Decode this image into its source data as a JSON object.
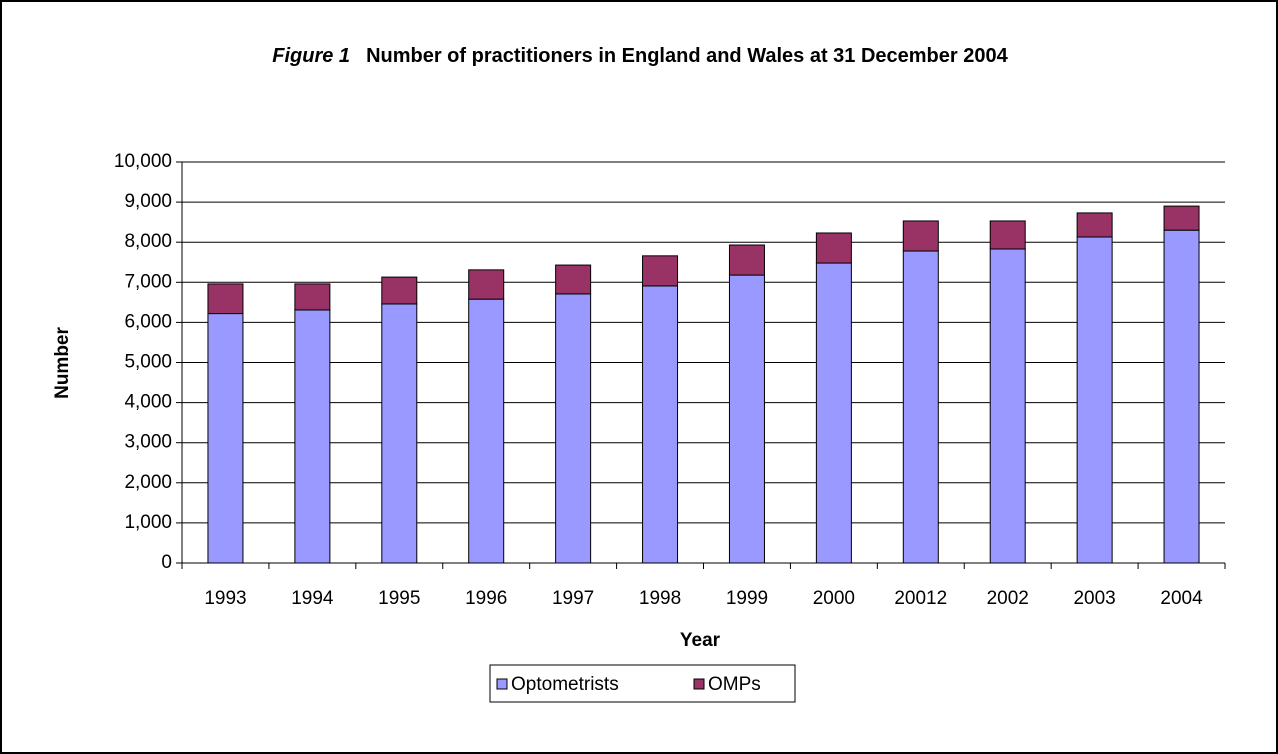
{
  "chart_data": {
    "type": "stacked_bar",
    "figure_label": "Figure 1",
    "title": "Number of practitioners in England and Wales at 31 December 2004",
    "x_label": "Year",
    "y_label": "Number",
    "categories": [
      "1993",
      "1994",
      "1995",
      "1996",
      "1997",
      "1998",
      "1999",
      "2000",
      "20012",
      "2002",
      "2003",
      "2004"
    ],
    "series": [
      {
        "name": "Optometrists",
        "color": "#9999ff",
        "values": [
          6220,
          6310,
          6460,
          6580,
          6710,
          6910,
          7180,
          7480,
          7780,
          7830,
          8130,
          8300
        ]
      },
      {
        "name": "OMPs",
        "color": "#993366",
        "values": [
          740,
          650,
          670,
          730,
          720,
          750,
          750,
          750,
          750,
          700,
          600,
          600
        ]
      }
    ],
    "ylim": [
      0,
      10000
    ],
    "yticks": [
      0,
      {
        "value": 1000,
        "label": "1,000"
      },
      {
        "value": 2000,
        "label": "2,000"
      },
      {
        "value": 3000,
        "label": "3,000"
      },
      {
        "value": 4000,
        "label": "4,000"
      },
      {
        "value": 5000,
        "label": "5,000"
      },
      {
        "value": 6000,
        "label": "6,000"
      },
      {
        "value": 7000,
        "label": "7,000"
      },
      {
        "value": 8000,
        "label": "8,000"
      },
      {
        "value": 9000,
        "label": "9,000"
      },
      {
        "value": 10000,
        "label": "10,000"
      }
    ],
    "grid": true,
    "legend": "bottom"
  }
}
